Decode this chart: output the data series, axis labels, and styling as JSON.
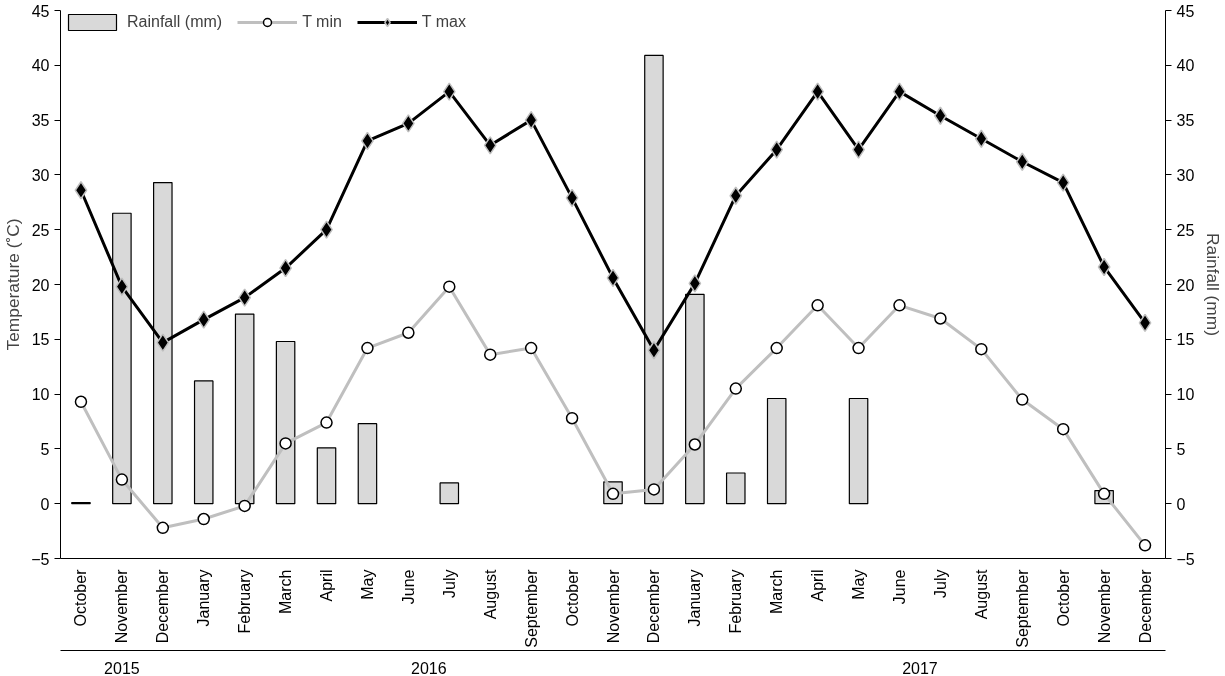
{
  "chart_data": {
    "type": "bar",
    "categories": [
      "October",
      "November",
      "December",
      "January",
      "February",
      "March",
      "April",
      "May",
      "June",
      "July",
      "August",
      "September",
      "October",
      "November",
      "December",
      "January",
      "February",
      "March",
      "April",
      "May",
      "June",
      "July",
      "August",
      "September",
      "October",
      "November",
      "December"
    ],
    "ylabel": "Temperature (˚C)",
    "y2label": "Rainfall (mm)",
    "annotations": [
      "2015",
      "2016",
      "2017"
    ],
    "ylim": [
      -5,
      45
    ],
    "yticks": [
      -5,
      0,
      5,
      10,
      15,
      20,
      25,
      30,
      35,
      40,
      45
    ],
    "y2lim": [
      -5,
      45
    ],
    "y2ticks": [
      -5,
      0,
      5,
      10,
      15,
      20,
      25,
      30,
      35,
      40,
      45
    ],
    "grid": false,
    "legend": "top left",
    "series": [
      {
        "name": "Rainfall (mm)",
        "axis": "y2",
        "color": "#d9d9d9",
        "values": [
          0.1,
          26.5,
          29.3,
          11.2,
          17.3,
          14.8,
          5.1,
          7.3,
          null,
          1.9,
          null,
          null,
          null,
          2.0,
          40.9,
          19.1,
          2.8,
          9.6,
          null,
          9.6,
          null,
          null,
          null,
          null,
          null,
          1.2,
          null
        ]
      },
      {
        "name": "T min",
        "type": "line",
        "marker": "circle",
        "color": "#bfbfbf",
        "values": [
          9.3,
          2.2,
          -2.2,
          -1.4,
          -0.2,
          5.5,
          7.4,
          14.2,
          15.6,
          19.8,
          13.6,
          14.2,
          7.8,
          0.9,
          1.3,
          5.4,
          10.5,
          14.2,
          18.1,
          14.2,
          18.1,
          16.9,
          14.1,
          9.5,
          6.8,
          0.9,
          -3.8
        ]
      },
      {
        "name": "T max",
        "type": "line",
        "marker": "diamond",
        "color": "#000000",
        "values": [
          28.6,
          19.8,
          14.7,
          16.8,
          18.8,
          21.5,
          25.0,
          33.1,
          34.7,
          37.6,
          32.7,
          35.0,
          27.9,
          20.6,
          14.0,
          20.1,
          28.1,
          32.3,
          37.6,
          32.3,
          37.6,
          35.4,
          33.3,
          31.2,
          29.3,
          21.6,
          16.5
        ]
      }
    ]
  }
}
